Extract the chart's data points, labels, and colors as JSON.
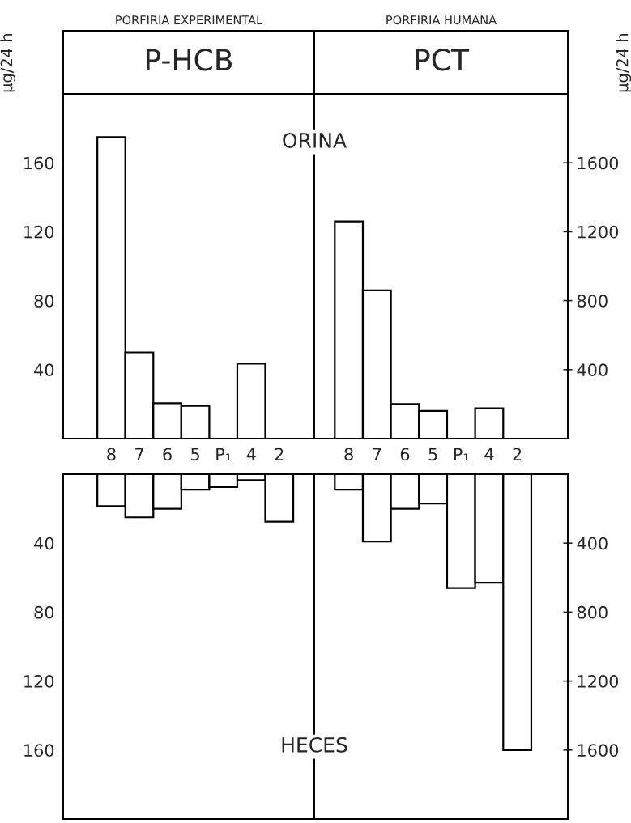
{
  "chart_data": [
    {
      "type": "bar",
      "subtitle": "PORFIRIA EXPERIMENTAL",
      "title": "P-HCB",
      "ylabel": "μg/24 h",
      "annotations": [
        "ORINA"
      ],
      "categories": [
        "8",
        "7",
        "6",
        "5",
        "P₁",
        "4",
        "2"
      ],
      "values": [
        175,
        50,
        20.5,
        19,
        null,
        43.5,
        null
      ],
      "color": "#ffffff",
      "ylim": [
        0,
        200
      ],
      "yticks": [
        40,
        80,
        120,
        160
      ]
    },
    {
      "type": "bar",
      "subtitle": "PORFIRIA HUMANA",
      "title": "PCT",
      "ylabel": "μg/24 h",
      "categories": [
        "8",
        "7",
        "6",
        "5",
        "P₁",
        "4",
        "2"
      ],
      "values": [
        1260,
        860,
        200,
        160,
        null,
        175,
        null
      ],
      "color": "#ffffff",
      "ylim": [
        0,
        2000
      ],
      "yticks": [
        400,
        800,
        1200,
        1600
      ]
    },
    {
      "type": "bar",
      "annotations": [
        "HECES"
      ],
      "categories": [
        null,
        null,
        null,
        null,
        null,
        null,
        null
      ],
      "values": [
        18.5,
        25,
        20,
        9,
        7.5,
        3.5,
        27.5
      ],
      "color": "#ffffff",
      "ylim": [
        200,
        0
      ],
      "yticks": [
        40,
        80,
        120,
        160
      ],
      "tick_labels": "y"
    },
    {
      "type": "bar",
      "categories": [
        null,
        null,
        null,
        null,
        null,
        null,
        null
      ],
      "values": [
        90,
        390,
        200,
        170,
        660,
        630,
        1600
      ],
      "color": "#ffffff",
      "ylim": [
        2000,
        0
      ],
      "yticks": [
        400,
        800,
        1200,
        1600
      ],
      "tick_labels": "y"
    }
  ]
}
